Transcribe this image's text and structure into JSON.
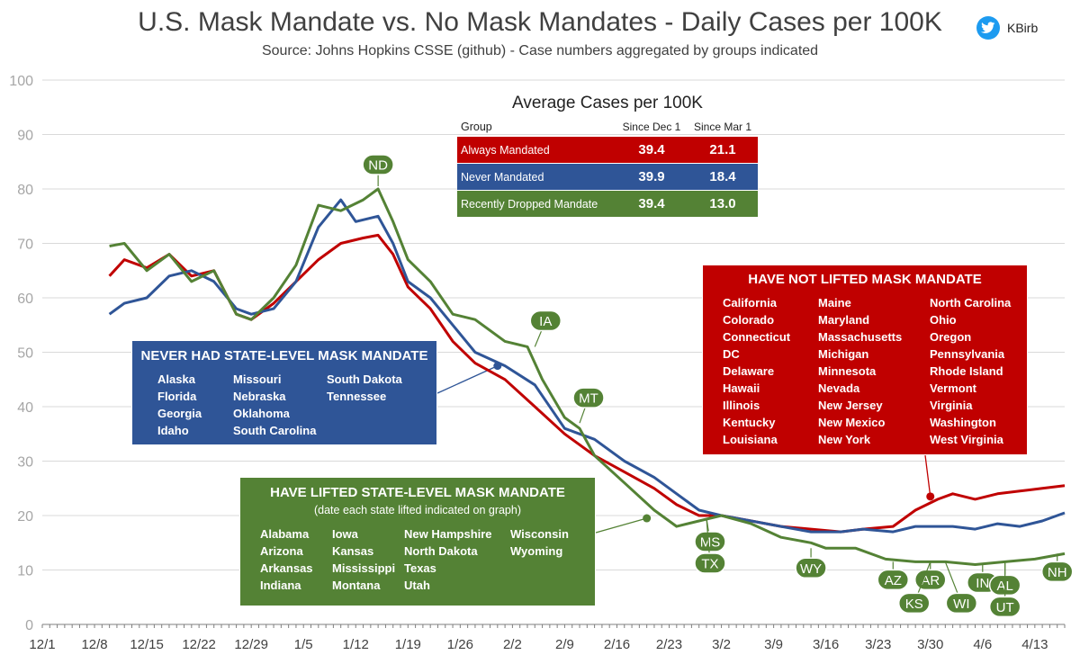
{
  "header": {
    "title": "U.S. Mask Mandate vs. No Mask Mandates - Daily Cases per 100K",
    "subtitle": "Source: Johns Hopkins CSSE (github) - Case numbers aggregated by groups indicated",
    "handle": "KBirb",
    "icon": "twitter-bird-icon"
  },
  "colors": {
    "red": "#c00000",
    "blue": "#2f5597",
    "green": "#548235",
    "grid": "#d9d9d9",
    "axis": "#7f7f7f"
  },
  "average_table": {
    "title": "Average Cases per 100K",
    "headers": [
      "Group",
      "Since Dec 1",
      "Since Mar 1"
    ],
    "rows": [
      {
        "group": "Always Mandated",
        "since_dec1": "39.4",
        "since_mar1": "21.1",
        "color": "#c00000"
      },
      {
        "group": "Never Mandated",
        "since_dec1": "39.9",
        "since_mar1": "18.4",
        "color": "#2f5597"
      },
      {
        "group": "Recently Dropped Mandate",
        "since_dec1": "39.4",
        "since_mar1": "13.0",
        "color": "#548235"
      }
    ]
  },
  "boxes": {
    "not_lifted": {
      "title": "HAVE NOT LIFTED MASK MANDATE",
      "columns": [
        [
          "California",
          "Colorado",
          "Connecticut",
          "DC",
          "Delaware",
          "Hawaii",
          "Illinois",
          "Kentucky",
          "Louisiana"
        ],
        [
          "Maine",
          "Maryland",
          "Massachusetts",
          "Michigan",
          "Minnesota",
          "Nevada",
          "New Jersey",
          "New Mexico",
          "New York"
        ],
        [
          "North Carolina",
          "Ohio",
          "Oregon",
          "Pennsylvania",
          "Rhode Island",
          "Vermont",
          "Virginia",
          "Washington",
          "West Virginia"
        ]
      ]
    },
    "never_had": {
      "title": "NEVER HAD STATE-LEVEL MASK MANDATE",
      "columns": [
        [
          "Alaska",
          "Florida",
          "Georgia",
          "Idaho"
        ],
        [
          "Missouri",
          "Nebraska",
          "Oklahoma",
          "South Carolina"
        ],
        [
          "South Dakota",
          "Tennessee"
        ]
      ]
    },
    "lifted": {
      "title": "HAVE LIFTED STATE-LEVEL MASK MANDATE",
      "subtitle": "(date each state lifted indicated on graph)",
      "columns": [
        [
          "Alabama",
          "Arizona",
          "Arkansas",
          "Indiana"
        ],
        [
          "Iowa",
          "Kansas",
          "Mississippi",
          "Montana"
        ],
        [
          "New Hampshire",
          "North Dakota",
          "Texas",
          "Utah"
        ],
        [
          "Wisconsin",
          "Wyoming"
        ]
      ]
    }
  },
  "chart_data": {
    "type": "line",
    "title": "U.S. Mask Mandate vs. No Mask Mandates - Daily Cases per 100K",
    "xlabel": "",
    "ylabel": "",
    "ylim": [
      0,
      100
    ],
    "yticks": [
      0,
      10,
      20,
      30,
      40,
      50,
      60,
      70,
      80,
      90,
      100
    ],
    "xlim": [
      "12/1",
      "4/17"
    ],
    "xticks": [
      "12/1",
      "12/8",
      "12/15",
      "12/22",
      "12/29",
      "1/5",
      "1/12",
      "1/19",
      "1/26",
      "2/2",
      "2/9",
      "2/16",
      "2/23",
      "3/2",
      "3/9",
      "3/16",
      "3/23",
      "3/30",
      "4/6",
      "4/13"
    ],
    "grid": "horizontal",
    "legend": "none",
    "series": [
      {
        "group": "Always Mandated",
        "color": "#c00000",
        "points": [
          [
            "12/10",
            64
          ],
          [
            "12/12",
            67
          ],
          [
            "12/15",
            65.5
          ],
          [
            "12/18",
            68
          ],
          [
            "12/21",
            64
          ],
          [
            "12/24",
            65
          ],
          [
            "12/27",
            57
          ],
          [
            "12/29",
            56
          ],
          [
            "1/1",
            59
          ],
          [
            "1/4",
            63
          ],
          [
            "1/7",
            67
          ],
          [
            "1/10",
            70
          ],
          [
            "1/13",
            71
          ],
          [
            "1/15",
            71.5
          ],
          [
            "1/17",
            68
          ],
          [
            "1/19",
            62
          ],
          [
            "1/22",
            58
          ],
          [
            "1/25",
            52
          ],
          [
            "1/28",
            48
          ],
          [
            "2/1",
            45
          ],
          [
            "2/5",
            40
          ],
          [
            "2/9",
            35
          ],
          [
            "2/13",
            31
          ],
          [
            "2/17",
            28
          ],
          [
            "2/21",
            25
          ],
          [
            "2/24",
            22
          ],
          [
            "2/27",
            20
          ],
          [
            "3/2",
            20
          ],
          [
            "3/6",
            19
          ],
          [
            "3/10",
            18
          ],
          [
            "3/14",
            17.5
          ],
          [
            "3/18",
            17
          ],
          [
            "3/21",
            17.5
          ],
          [
            "3/25",
            18
          ],
          [
            "3/28",
            21
          ],
          [
            "3/31",
            23
          ],
          [
            "4/2",
            24
          ],
          [
            "4/5",
            23
          ],
          [
            "4/8",
            24
          ],
          [
            "4/11",
            24.5
          ],
          [
            "4/14",
            25
          ],
          [
            "4/17",
            25.5
          ]
        ]
      },
      {
        "group": "Never Mandated",
        "color": "#2f5597",
        "points": [
          [
            "12/10",
            57
          ],
          [
            "12/12",
            59
          ],
          [
            "12/15",
            60
          ],
          [
            "12/18",
            64
          ],
          [
            "12/21",
            65
          ],
          [
            "12/24",
            63
          ],
          [
            "12/27",
            58
          ],
          [
            "12/29",
            57
          ],
          [
            "1/1",
            58
          ],
          [
            "1/4",
            63
          ],
          [
            "1/7",
            73
          ],
          [
            "1/10",
            78
          ],
          [
            "1/12",
            74
          ],
          [
            "1/15",
            75
          ],
          [
            "1/17",
            70
          ],
          [
            "1/19",
            63
          ],
          [
            "1/22",
            60
          ],
          [
            "1/25",
            55
          ],
          [
            "1/28",
            50
          ],
          [
            "2/1",
            47.5
          ],
          [
            "2/5",
            44
          ],
          [
            "2/9",
            36
          ],
          [
            "2/13",
            34
          ],
          [
            "2/17",
            30
          ],
          [
            "2/21",
            27
          ],
          [
            "2/24",
            24
          ],
          [
            "2/27",
            21
          ],
          [
            "3/2",
            20
          ],
          [
            "3/6",
            19
          ],
          [
            "3/10",
            18
          ],
          [
            "3/14",
            17
          ],
          [
            "3/18",
            17
          ],
          [
            "3/21",
            17.5
          ],
          [
            "3/25",
            17
          ],
          [
            "3/28",
            18
          ],
          [
            "3/31",
            18
          ],
          [
            "4/2",
            18
          ],
          [
            "4/5",
            17.5
          ],
          [
            "4/8",
            18.5
          ],
          [
            "4/11",
            18
          ],
          [
            "4/14",
            19
          ],
          [
            "4/17",
            20.5
          ]
        ]
      },
      {
        "group": "Recently Dropped Mandate",
        "color": "#548235",
        "points": [
          [
            "12/10",
            69.5
          ],
          [
            "12/12",
            70
          ],
          [
            "12/15",
            65
          ],
          [
            "12/18",
            68
          ],
          [
            "12/21",
            63
          ],
          [
            "12/24",
            65
          ],
          [
            "12/27",
            57
          ],
          [
            "12/29",
            56
          ],
          [
            "1/1",
            60
          ],
          [
            "1/4",
            66
          ],
          [
            "1/7",
            77
          ],
          [
            "1/10",
            76
          ],
          [
            "1/13",
            78
          ],
          [
            "1/15",
            80
          ],
          [
            "1/17",
            74
          ],
          [
            "1/19",
            67
          ],
          [
            "1/22",
            63
          ],
          [
            "1/25",
            57
          ],
          [
            "1/28",
            56
          ],
          [
            "2/1",
            52
          ],
          [
            "2/4",
            51
          ],
          [
            "2/6",
            45
          ],
          [
            "2/9",
            38
          ],
          [
            "2/11",
            36
          ],
          [
            "2/13",
            31
          ],
          [
            "2/17",
            26
          ],
          [
            "2/21",
            21
          ],
          [
            "2/24",
            18
          ],
          [
            "2/27",
            19
          ],
          [
            "3/2",
            20
          ],
          [
            "3/6",
            18.5
          ],
          [
            "3/10",
            16
          ],
          [
            "3/14",
            15
          ],
          [
            "3/16",
            14
          ],
          [
            "3/20",
            14
          ],
          [
            "3/24",
            12
          ],
          [
            "3/28",
            11.5
          ],
          [
            "4/1",
            11.5
          ],
          [
            "4/5",
            11
          ],
          [
            "4/9",
            11.5
          ],
          [
            "4/13",
            12
          ],
          [
            "4/17",
            13
          ]
        ]
      }
    ],
    "annotations": [
      {
        "label": "ND",
        "x": "1/15",
        "y": 80.5
      },
      {
        "label": "IA",
        "x": "2/5",
        "y": 51
      },
      {
        "label": "MT",
        "x": "2/11",
        "y": 37
      },
      {
        "label": "MS",
        "x": "2/28",
        "y": 19.5
      },
      {
        "label": "TX",
        "x": "2/28",
        "y": 19.5
      },
      {
        "label": "WY",
        "x": "3/14",
        "y": 14
      },
      {
        "label": "AZ",
        "x": "3/25",
        "y": 11.5
      },
      {
        "label": "AR",
        "x": "3/30",
        "y": 11.5
      },
      {
        "label": "KS",
        "x": "3/30",
        "y": 11.5
      },
      {
        "label": "WI",
        "x": "4/1",
        "y": 11.5
      },
      {
        "label": "IN",
        "x": "4/6",
        "y": 11
      },
      {
        "label": "AL",
        "x": "4/9",
        "y": 11.5
      },
      {
        "label": "UT",
        "x": "4/9",
        "y": 11.5
      },
      {
        "label": "NH",
        "x": "4/16",
        "y": 13
      }
    ]
  }
}
